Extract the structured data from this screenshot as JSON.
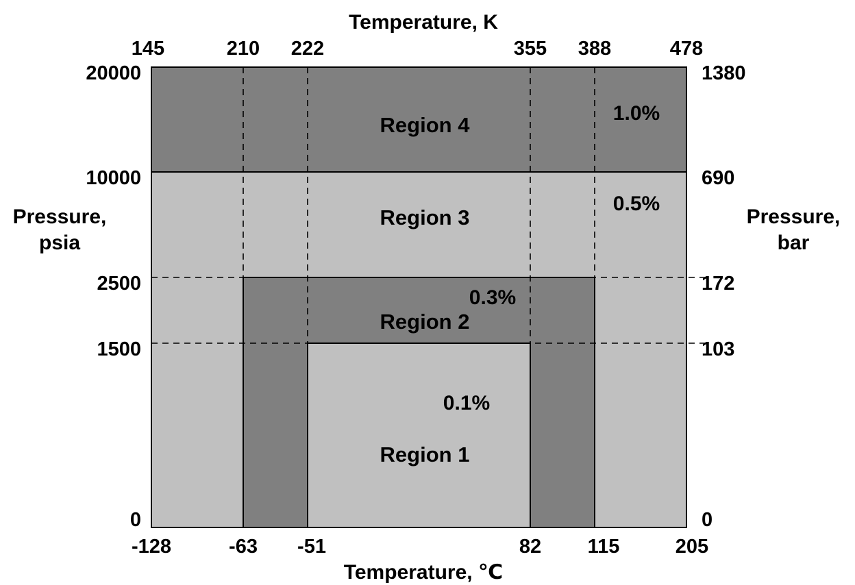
{
  "colors": {
    "dark": "#808080",
    "light": "#c0c0c0",
    "line": "#000000"
  },
  "axes": {
    "top": {
      "title": "Temperature, K",
      "ticks": [
        "145",
        "210",
        "222",
        "355",
        "388",
        "478"
      ]
    },
    "bottom": {
      "title": "Temperature, ℃",
      "ticks": [
        "-128",
        "-63",
        "-51",
        "82",
        "115",
        "205"
      ]
    },
    "left": {
      "title_line1": "Pressure,",
      "title_line2": "psia",
      "ticks": [
        "20000",
        "10000",
        "2500",
        "1500",
        "0"
      ]
    },
    "right": {
      "title_line1": "Pressure,",
      "title_line2": "bar",
      "ticks": [
        "1380",
        "690",
        "172",
        "103",
        "0"
      ]
    }
  },
  "regions": [
    {
      "label": "Region 4",
      "percent": "1.0%",
      "shade": "dark",
      "temp_c": [
        -128,
        205
      ],
      "pressure_psia": [
        10000,
        20000
      ]
    },
    {
      "label": "Region 3",
      "percent": "0.5%",
      "shade": "light",
      "temp_c": [
        -128,
        205
      ],
      "pressure_psia": [
        2500,
        10000
      ]
    },
    {
      "label": "Region 2",
      "percent": "0.3%",
      "shade": "dark",
      "temp_c": [
        -63,
        115
      ],
      "pressure_psia": [
        1500,
        2500
      ]
    },
    {
      "label": "Region 1",
      "percent": "0.1%",
      "shade": "light",
      "temp_c": [
        -51,
        82
      ],
      "pressure_psia": [
        0,
        1500
      ]
    }
  ]
}
